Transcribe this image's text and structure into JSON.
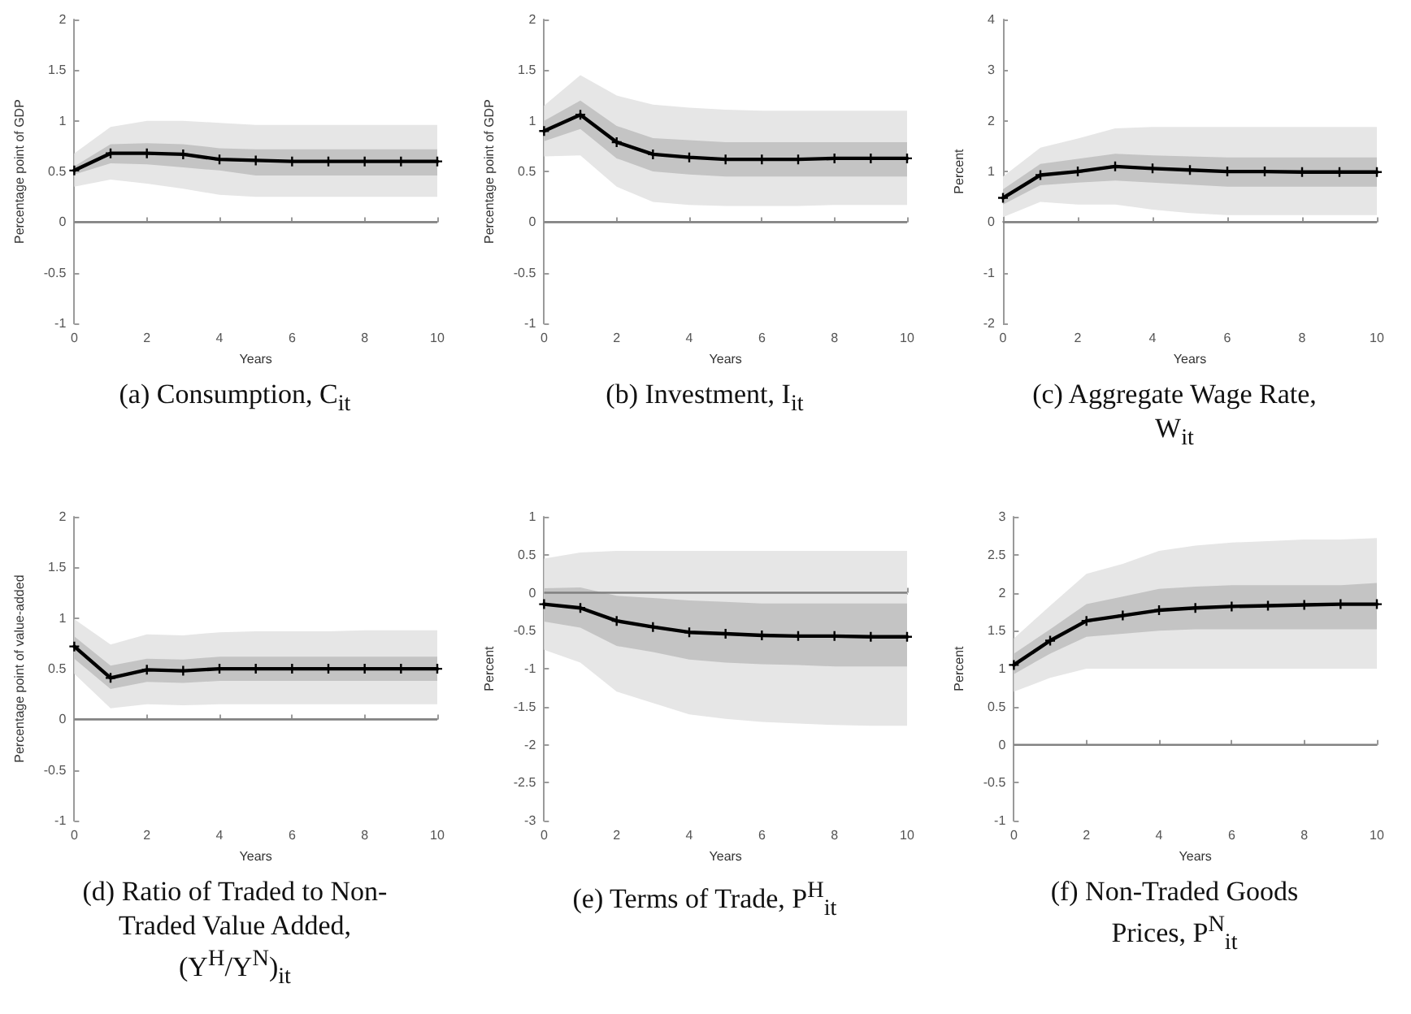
{
  "chart_data": [
    {
      "type": "line",
      "title": "(a) Consumption, C$_{it}$",
      "xlabel": "Years",
      "ylabel": "Percentage point of GDP",
      "x": [
        0,
        1,
        2,
        3,
        4,
        5,
        6,
        7,
        8,
        9,
        10
      ],
      "xlim": [
        0,
        10
      ],
      "xticks": [
        0,
        2,
        4,
        6,
        8,
        10
      ],
      "ylim": [
        -1,
        2
      ],
      "yticks": [
        -1,
        -0.5,
        0,
        0.5,
        1,
        1.5,
        2
      ],
      "marker": "cross",
      "ref_lines": [
        {
          "axis": "y",
          "value": 0,
          "color": "#808080"
        }
      ],
      "series": [
        {
          "color": "#e6e6e6",
          "values": [
            null,
            null,
            null,
            null,
            null,
            null,
            null,
            null,
            null,
            null,
            null
          ],
          "lower": [
            0.35,
            0.42,
            0.38,
            0.33,
            0.27,
            0.25,
            0.25,
            0.25,
            0.25,
            0.25,
            0.25
          ],
          "upper": [
            0.68,
            0.94,
            1.0,
            1.0,
            0.98,
            0.96,
            0.96,
            0.96,
            0.96,
            0.96,
            0.96
          ]
        },
        {
          "color": "#c4c4c4",
          "values": [
            null,
            null,
            null,
            null,
            null,
            null,
            null,
            null,
            null,
            null,
            null
          ],
          "lower": [
            0.47,
            0.58,
            0.57,
            0.54,
            0.51,
            0.46,
            0.46,
            0.46,
            0.46,
            0.46,
            0.46
          ],
          "upper": [
            0.55,
            0.77,
            0.78,
            0.77,
            0.73,
            0.72,
            0.72,
            0.72,
            0.72,
            0.72,
            0.72
          ]
        },
        {
          "color": "#000000",
          "values": [
            0.51,
            0.68,
            0.68,
            0.67,
            0.62,
            0.61,
            0.6,
            0.6,
            0.6,
            0.6,
            0.6
          ]
        }
      ]
    },
    {
      "type": "line",
      "title": "(b) Investment, I$_{it}$",
      "xlabel": "Years",
      "ylabel": "Percentage point of GDP",
      "x": [
        0,
        1,
        2,
        3,
        4,
        5,
        6,
        7,
        8,
        9,
        10
      ],
      "xlim": [
        0,
        10
      ],
      "xticks": [
        0,
        2,
        4,
        6,
        8,
        10
      ],
      "ylim": [
        -1,
        2
      ],
      "yticks": [
        -1,
        -0.5,
        0,
        0.5,
        1,
        1.5,
        2
      ],
      "marker": "cross",
      "ref_lines": [
        {
          "axis": "y",
          "value": 0,
          "color": "#808080"
        }
      ],
      "series": [
        {
          "color": "#e6e6e6",
          "values": [
            null,
            null,
            null,
            null,
            null,
            null,
            null,
            null,
            null,
            null,
            null
          ],
          "lower": [
            0.65,
            0.66,
            0.35,
            0.2,
            0.17,
            0.16,
            0.16,
            0.16,
            0.17,
            0.17,
            0.17
          ],
          "upper": [
            1.15,
            1.45,
            1.25,
            1.16,
            1.13,
            1.11,
            1.1,
            1.1,
            1.1,
            1.1,
            1.1
          ]
        },
        {
          "color": "#c4c4c4",
          "values": [
            null,
            null,
            null,
            null,
            null,
            null,
            null,
            null,
            null,
            null,
            null
          ],
          "lower": [
            0.8,
            0.92,
            0.63,
            0.5,
            0.47,
            0.45,
            0.45,
            0.45,
            0.45,
            0.45,
            0.45
          ],
          "upper": [
            1.0,
            1.2,
            0.95,
            0.83,
            0.81,
            0.79,
            0.79,
            0.79,
            0.79,
            0.79,
            0.79
          ]
        },
        {
          "color": "#000000",
          "values": [
            0.9,
            1.06,
            0.79,
            0.67,
            0.64,
            0.62,
            0.62,
            0.62,
            0.63,
            0.63,
            0.63
          ]
        }
      ]
    },
    {
      "type": "line",
      "title": "(c) Aggregate Wage Rate, W$_{it}$",
      "xlabel": "Years",
      "ylabel": "Percent",
      "x": [
        0,
        1,
        2,
        3,
        4,
        5,
        6,
        7,
        8,
        9,
        10
      ],
      "xlim": [
        0,
        10
      ],
      "xticks": [
        0,
        2,
        4,
        6,
        8,
        10
      ],
      "ylim": [
        -2,
        4
      ],
      "yticks": [
        -2,
        -1,
        0,
        1,
        2,
        3,
        4
      ],
      "marker": "cross",
      "ref_lines": [
        {
          "axis": "y",
          "value": 0,
          "color": "#808080"
        }
      ],
      "series": [
        {
          "color": "#e6e6e6",
          "values": [
            null,
            null,
            null,
            null,
            null,
            null,
            null,
            null,
            null,
            null,
            null
          ],
          "lower": [
            0.1,
            0.4,
            0.35,
            0.35,
            0.25,
            0.18,
            0.14,
            0.14,
            0.14,
            0.14,
            0.14
          ],
          "upper": [
            0.9,
            1.47,
            1.65,
            1.85,
            1.88,
            1.88,
            1.88,
            1.88,
            1.88,
            1.88,
            1.88
          ]
        },
        {
          "color": "#c4c4c4",
          "values": [
            null,
            null,
            null,
            null,
            null,
            null,
            null,
            null,
            null,
            null,
            null
          ],
          "lower": [
            0.35,
            0.73,
            0.78,
            0.82,
            0.78,
            0.74,
            0.7,
            0.7,
            0.7,
            0.7,
            0.7
          ],
          "upper": [
            0.65,
            1.15,
            1.25,
            1.35,
            1.32,
            1.3,
            1.28,
            1.28,
            1.28,
            1.28,
            1.28
          ]
        },
        {
          "color": "#000000",
          "values": [
            0.48,
            0.93,
            1.0,
            1.1,
            1.06,
            1.03,
            1.0,
            1.0,
            0.99,
            0.99,
            0.99
          ]
        }
      ]
    },
    {
      "type": "line",
      "title": "(d) Ratio of Traded to Non-Traded Value Added, (Y$^{H}$/Y$^{N}$)$_{it}$",
      "xlabel": "Years",
      "ylabel": "Percentage point of value-added",
      "x": [
        0,
        1,
        2,
        3,
        4,
        5,
        6,
        7,
        8,
        9,
        10
      ],
      "xlim": [
        0,
        10
      ],
      "xticks": [
        0,
        2,
        4,
        6,
        8,
        10
      ],
      "ylim": [
        -1,
        2
      ],
      "yticks": [
        -1,
        -0.5,
        0,
        0.5,
        1,
        1.5,
        2
      ],
      "marker": "cross",
      "ref_lines": [
        {
          "axis": "y",
          "value": 0,
          "color": "#808080"
        }
      ],
      "series": [
        {
          "color": "#e6e6e6",
          "values": [
            null,
            null,
            null,
            null,
            null,
            null,
            null,
            null,
            null,
            null,
            null
          ],
          "lower": [
            0.45,
            0.11,
            0.15,
            0.14,
            0.15,
            0.15,
            0.15,
            0.15,
            0.15,
            0.15,
            0.15
          ],
          "upper": [
            0.99,
            0.74,
            0.84,
            0.83,
            0.86,
            0.87,
            0.87,
            0.87,
            0.88,
            0.88,
            0.88
          ]
        },
        {
          "color": "#c4c4c4",
          "values": [
            null,
            null,
            null,
            null,
            null,
            null,
            null,
            null,
            null,
            null,
            null
          ],
          "lower": [
            0.6,
            0.3,
            0.37,
            0.36,
            0.38,
            0.38,
            0.38,
            0.38,
            0.38,
            0.38,
            0.38
          ],
          "upper": [
            0.82,
            0.53,
            0.6,
            0.59,
            0.62,
            0.62,
            0.62,
            0.62,
            0.62,
            0.62,
            0.62
          ]
        },
        {
          "color": "#000000",
          "values": [
            0.72,
            0.41,
            0.49,
            0.48,
            0.5,
            0.5,
            0.5,
            0.5,
            0.5,
            0.5,
            0.5
          ]
        }
      ]
    },
    {
      "type": "line",
      "title": "(e) Terms of Trade, P$^{H}$$_{it}$",
      "xlabel": "Years",
      "ylabel": "Percent",
      "x": [
        0,
        1,
        2,
        3,
        4,
        5,
        6,
        7,
        8,
        9,
        10
      ],
      "xlim": [
        0,
        10
      ],
      "xticks": [
        0,
        2,
        4,
        6,
        8,
        10
      ],
      "ylim": [
        -3,
        1
      ],
      "yticks": [
        -3,
        -2.5,
        -2,
        -1.5,
        -1,
        -0.5,
        0,
        0.5,
        1
      ],
      "marker": "cross",
      "ref_lines": [
        {
          "axis": "y",
          "value": 0,
          "color": "#808080"
        }
      ],
      "series": [
        {
          "color": "#e6e6e6",
          "values": [
            null,
            null,
            null,
            null,
            null,
            null,
            null,
            null,
            null,
            null,
            null
          ],
          "lower": [
            -0.75,
            -0.92,
            -1.3,
            -1.45,
            -1.6,
            -1.66,
            -1.7,
            -1.72,
            -1.74,
            -1.75,
            -1.75
          ],
          "upper": [
            0.45,
            0.53,
            0.55,
            0.55,
            0.55,
            0.55,
            0.55,
            0.55,
            0.55,
            0.55,
            0.55
          ]
        },
        {
          "color": "#c4c4c4",
          "values": [
            null,
            null,
            null,
            null,
            null,
            null,
            null,
            null,
            null,
            null,
            null
          ],
          "lower": [
            -0.38,
            -0.46,
            -0.7,
            -0.78,
            -0.88,
            -0.92,
            -0.94,
            -0.95,
            -0.97,
            -0.97,
            -0.97
          ],
          "upper": [
            0.06,
            0.07,
            -0.04,
            -0.07,
            -0.1,
            -0.12,
            -0.14,
            -0.14,
            -0.14,
            -0.14,
            -0.14
          ]
        },
        {
          "color": "#000000",
          "values": [
            -0.15,
            -0.2,
            -0.37,
            -0.45,
            -0.52,
            -0.54,
            -0.56,
            -0.57,
            -0.57,
            -0.58,
            -0.58
          ]
        }
      ]
    },
    {
      "type": "line",
      "title": "(f) Non-Traded Goods Prices, P$^{N}$$_{it}$",
      "xlabel": "Years",
      "ylabel": "Percent",
      "x": [
        0,
        1,
        2,
        3,
        4,
        5,
        6,
        7,
        8,
        9,
        10
      ],
      "xlim": [
        0,
        10
      ],
      "xticks": [
        0,
        2,
        4,
        6,
        8,
        10
      ],
      "ylim": [
        -1,
        3
      ],
      "yticks": [
        -1,
        -0.5,
        0,
        0.5,
        1,
        1.5,
        2,
        2.5,
        3
      ],
      "marker": "cross",
      "ref_lines": [
        {
          "axis": "y",
          "value": 0,
          "color": "#808080"
        }
      ],
      "series": [
        {
          "color": "#e6e6e6",
          "values": [
            null,
            null,
            null,
            null,
            null,
            null,
            null,
            null,
            null,
            null,
            null
          ],
          "lower": [
            0.7,
            0.88,
            1.0,
            1.0,
            1.0,
            1.0,
            1.0,
            1.0,
            1.0,
            1.0,
            1.0
          ],
          "upper": [
            1.4,
            1.83,
            2.25,
            2.38,
            2.55,
            2.62,
            2.66,
            2.68,
            2.7,
            2.7,
            2.72
          ]
        },
        {
          "color": "#c4c4c4",
          "values": [
            null,
            null,
            null,
            null,
            null,
            null,
            null,
            null,
            null,
            null,
            null
          ],
          "lower": [
            0.93,
            1.2,
            1.42,
            1.46,
            1.5,
            1.52,
            1.52,
            1.52,
            1.52,
            1.52,
            1.52
          ],
          "upper": [
            1.2,
            1.52,
            1.85,
            1.95,
            2.05,
            2.08,
            2.1,
            2.1,
            2.1,
            2.1,
            2.13
          ]
        },
        {
          "color": "#000000",
          "values": [
            1.05,
            1.37,
            1.63,
            1.7,
            1.77,
            1.8,
            1.82,
            1.83,
            1.84,
            1.85,
            1.85
          ]
        }
      ]
    }
  ]
}
